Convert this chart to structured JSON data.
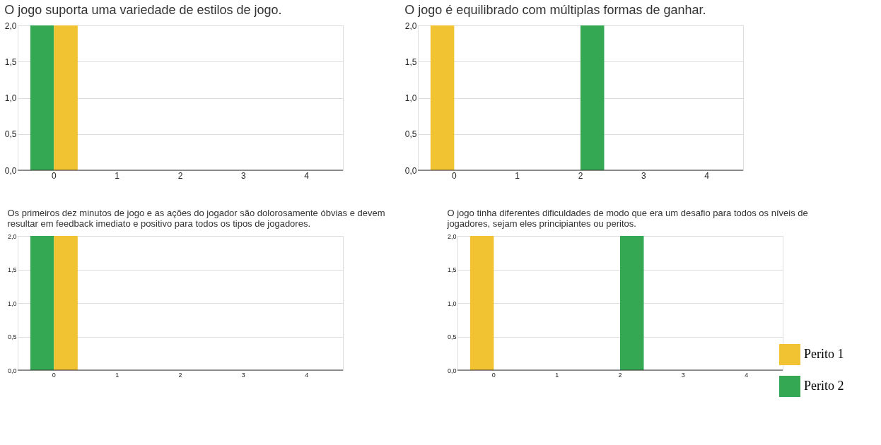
{
  "chart_data": [
    {
      "type": "bar",
      "title": "O jogo suporta uma variedade de estilos de jogo.",
      "categories": [
        "0",
        "1",
        "2",
        "3",
        "4"
      ],
      "series": [
        {
          "name": "Perito 2",
          "color": "#34a853",
          "values": [
            2,
            0,
            0,
            0,
            0
          ]
        },
        {
          "name": "Perito 1",
          "color": "#f1c232",
          "values": [
            2,
            0,
            0,
            0,
            0
          ]
        }
      ],
      "ylim": [
        0,
        2
      ],
      "yticks": [
        {
          "value": 0,
          "label": "0,0"
        },
        {
          "value": 0.5,
          "label": "0,5"
        },
        {
          "value": 1,
          "label": "1,0"
        },
        {
          "value": 1.5,
          "label": "1,5"
        },
        {
          "value": 2,
          "label": "2,0"
        }
      ],
      "grid": "y",
      "legend": "bottom right"
    },
    {
      "type": "bar",
      "title": "O jogo é equilibrado com múltiplas formas de ganhar.",
      "categories": [
        "0",
        "1",
        "2",
        "3",
        "4"
      ],
      "series": [
        {
          "name": "Perito 1",
          "color": "#f1c232",
          "values": [
            2,
            0,
            0,
            0,
            0
          ]
        },
        {
          "name": "Perito 2",
          "color": "#34a853",
          "values": [
            0,
            0,
            2,
            0,
            0
          ]
        }
      ],
      "ylim": [
        0,
        2
      ],
      "yticks": [
        {
          "value": 0,
          "label": "0,0"
        },
        {
          "value": 0.5,
          "label": "0,5"
        },
        {
          "value": 1,
          "label": "1,0"
        },
        {
          "value": 1.5,
          "label": "1,5"
        },
        {
          "value": 2,
          "label": "2,0"
        }
      ],
      "grid": "y"
    },
    {
      "type": "bar",
      "title": "Os primeiros dez minutos de jogo e as ações do jogador são dolorosamente óbvias e devem resultar em feedback imediato e positivo para todos os tipos de jogadores.",
      "categories": [
        "0",
        "1",
        "2",
        "3",
        "4"
      ],
      "series": [
        {
          "name": "Perito 2",
          "color": "#34a853",
          "values": [
            2,
            0,
            0,
            0,
            0
          ]
        },
        {
          "name": "Perito 1",
          "color": "#f1c232",
          "values": [
            2,
            0,
            0,
            0,
            0
          ]
        }
      ],
      "ylim": [
        0,
        2
      ],
      "yticks": [
        {
          "value": 0,
          "label": "0,0"
        },
        {
          "value": 0.5,
          "label": "0,5"
        },
        {
          "value": 1,
          "label": "1,0"
        },
        {
          "value": 1.5,
          "label": "1,5"
        },
        {
          "value": 2,
          "label": "2,0"
        }
      ],
      "grid": "y"
    },
    {
      "type": "bar",
      "title": "O jogo tinha diferentes dificuldades de modo que era um desafio para todos os níveis de jogadores, sejam eles principiantes ou peritos.",
      "categories": [
        "0",
        "1",
        "2",
        "3",
        "4"
      ],
      "series": [
        {
          "name": "Perito 1",
          "color": "#f1c232",
          "values": [
            2,
            0,
            0,
            0,
            0
          ]
        },
        {
          "name": "Perito 2",
          "color": "#34a853",
          "values": [
            0,
            0,
            2,
            0,
            0
          ]
        }
      ],
      "ylim": [
        0,
        2
      ],
      "yticks": [
        {
          "value": 0,
          "label": "0,0"
        },
        {
          "value": 0.5,
          "label": "0,5"
        },
        {
          "value": 1,
          "label": "1,0"
        },
        {
          "value": 1.5,
          "label": "1,5"
        },
        {
          "value": 2,
          "label": "2,0"
        }
      ],
      "grid": "y",
      "legend": "bottom right"
    }
  ]
}
